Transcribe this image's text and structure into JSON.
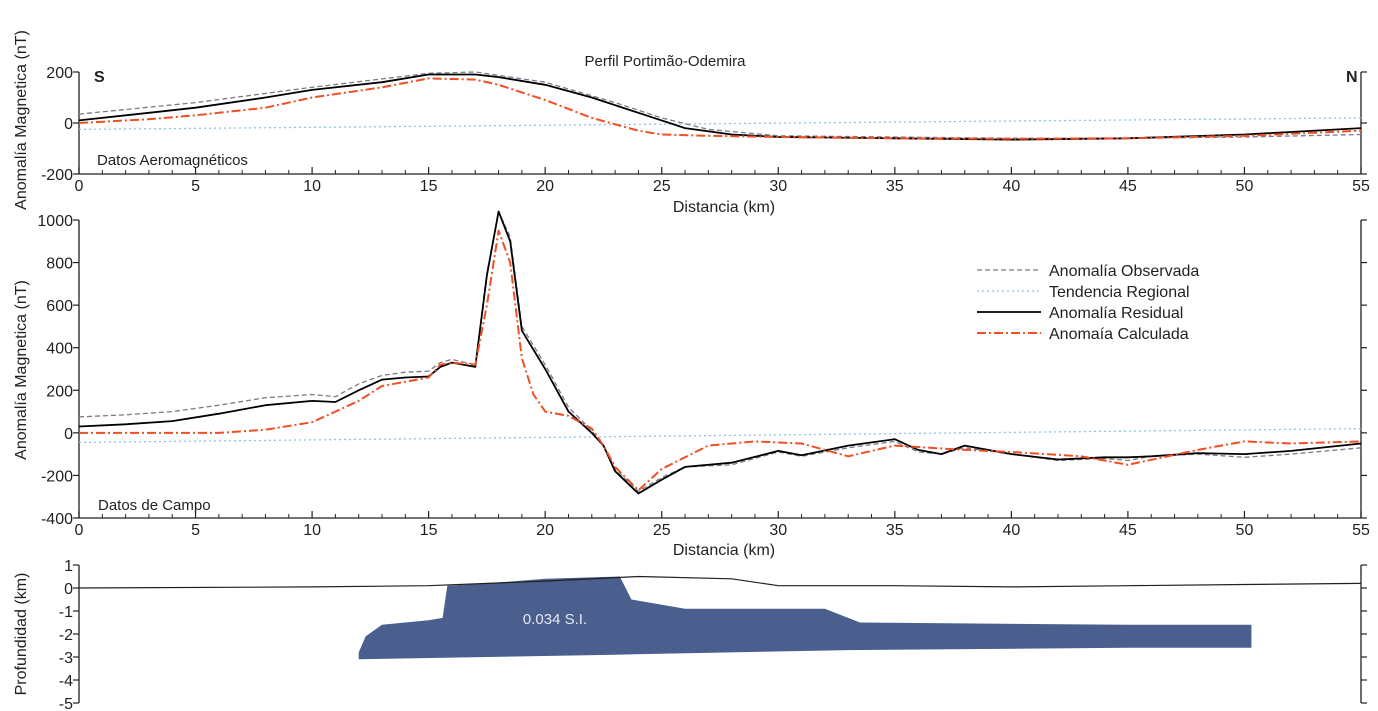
{
  "figure": {
    "title": "Perfil Portimão-Odemira",
    "left_label": "S",
    "right_label": "N"
  },
  "colors": {
    "observed": "#7a7a8c",
    "regional": "#8cc4e6",
    "residual": "#000000",
    "calculated": "#f04e23",
    "body": "#4a5f8e",
    "axis": "#231f20"
  },
  "chart_data": [
    {
      "type": "line",
      "panel": "aeromagnetic",
      "annotation": "Datos Aeromagnéticos",
      "xlabel": "Distancia (km)",
      "ylabel": "Anomalía Magnetica (nT)",
      "xlim": [
        0,
        55
      ],
      "ylim": [
        -200,
        200
      ],
      "xticks": [
        0,
        5,
        10,
        15,
        20,
        25,
        30,
        35,
        40,
        45,
        50,
        55
      ],
      "yticks": [
        -200,
        0,
        200
      ],
      "grid": false,
      "series": [
        {
          "key": "observed",
          "style": "dashed",
          "x": [
            0,
            5,
            10,
            15,
            17,
            20,
            23,
            25,
            27,
            30,
            35,
            40,
            45,
            50,
            55
          ],
          "y": [
            35,
            80,
            140,
            195,
            200,
            160,
            80,
            20,
            -25,
            -50,
            -55,
            -60,
            -60,
            -55,
            -45
          ]
        },
        {
          "key": "regional",
          "style": "dotted",
          "x": [
            0,
            55
          ],
          "y": [
            -25,
            20
          ]
        },
        {
          "key": "residual",
          "style": "solid",
          "x": [
            0,
            3,
            5,
            8,
            10,
            13,
            15,
            17,
            18,
            20,
            22,
            24,
            26,
            28,
            30,
            35,
            40,
            45,
            50,
            55
          ],
          "y": [
            10,
            40,
            60,
            100,
            130,
            160,
            190,
            190,
            180,
            150,
            100,
            40,
            -20,
            -45,
            -55,
            -60,
            -65,
            -60,
            -45,
            -20
          ]
        },
        {
          "key": "calculated",
          "style": "dashdot",
          "x": [
            0,
            3,
            5,
            8,
            10,
            13,
            15,
            17,
            18,
            20,
            22,
            24,
            25,
            27,
            30,
            35,
            40,
            45,
            50,
            55
          ],
          "y": [
            0,
            15,
            30,
            60,
            100,
            140,
            175,
            170,
            150,
            90,
            20,
            -30,
            -45,
            -50,
            -55,
            -60,
            -62,
            -60,
            -50,
            -30
          ]
        }
      ]
    },
    {
      "type": "line",
      "panel": "field",
      "annotation": "Datos de Campo",
      "xlabel": "Distancia (km)",
      "ylabel": "Anomalía Magnetica (nT)",
      "xlim": [
        0,
        55
      ],
      "ylim": [
        -400,
        1000
      ],
      "xticks": [
        0,
        5,
        10,
        15,
        20,
        25,
        30,
        35,
        40,
        45,
        50,
        55
      ],
      "yticks": [
        -400,
        -200,
        0,
        200,
        400,
        600,
        800,
        1000
      ],
      "grid": false,
      "legend_position": "right",
      "legend": [
        {
          "key": "observed",
          "label": "Anomalía Observada"
        },
        {
          "key": "regional",
          "label": "Tendencia Regional"
        },
        {
          "key": "residual",
          "label": "Anomalía Residual"
        },
        {
          "key": "calculated",
          "label": "Anomaía Calculada"
        }
      ],
      "series": [
        {
          "key": "observed",
          "style": "dashed",
          "x": [
            0,
            2,
            4,
            6,
            8,
            10,
            11,
            12,
            13,
            14,
            15,
            15.5,
            16,
            17,
            17.5,
            18,
            18.5,
            19,
            20,
            21,
            22,
            22.5,
            23,
            24,
            25,
            26,
            28,
            30,
            31,
            33,
            35,
            36,
            37,
            38,
            40,
            42,
            44,
            45,
            46,
            48,
            50,
            52,
            55
          ],
          "y": [
            75,
            85,
            100,
            130,
            165,
            180,
            170,
            230,
            270,
            285,
            290,
            330,
            345,
            320,
            750,
            1040,
            920,
            500,
            320,
            120,
            10,
            -60,
            -170,
            -275,
            -210,
            -160,
            -150,
            -90,
            -110,
            -70,
            -40,
            -90,
            -100,
            -70,
            -100,
            -130,
            -120,
            -130,
            -110,
            -100,
            -115,
            -100,
            -70
          ]
        },
        {
          "key": "regional",
          "style": "dotted",
          "x": [
            0,
            55
          ],
          "y": [
            -45,
            20
          ]
        },
        {
          "key": "residual",
          "style": "solid",
          "x": [
            0,
            2,
            4,
            6,
            8,
            10,
            11,
            12,
            13,
            14,
            15,
            15.5,
            16,
            17,
            17.5,
            18,
            18.5,
            19,
            20,
            21,
            22,
            22.5,
            23,
            24,
            25,
            26,
            28,
            30,
            31,
            33,
            35,
            36,
            37,
            38,
            40,
            42,
            44,
            45,
            46,
            48,
            50,
            52,
            55
          ],
          "y": [
            30,
            40,
            55,
            90,
            130,
            150,
            145,
            200,
            250,
            260,
            265,
            310,
            330,
            310,
            740,
            1040,
            900,
            480,
            300,
            100,
            0,
            -60,
            -180,
            -285,
            -220,
            -160,
            -140,
            -85,
            -105,
            -60,
            -30,
            -80,
            -100,
            -60,
            -100,
            -125,
            -115,
            -115,
            -110,
            -95,
            -100,
            -85,
            -50
          ]
        },
        {
          "key": "calculated",
          "style": "dashdot",
          "x": [
            0,
            3,
            6,
            8,
            10,
            11,
            12,
            13,
            14,
            15,
            15.5,
            16,
            17,
            17.5,
            18,
            18.5,
            19,
            19.5,
            20,
            21,
            22,
            22.5,
            23,
            24,
            25,
            27,
            29,
            31,
            33,
            35,
            38,
            40,
            43,
            45,
            48,
            50,
            52,
            55
          ],
          "y": [
            0,
            0,
            0,
            15,
            50,
            100,
            150,
            220,
            240,
            260,
            320,
            330,
            320,
            600,
            950,
            800,
            350,
            180,
            100,
            80,
            20,
            -60,
            -160,
            -270,
            -170,
            -60,
            -40,
            -50,
            -110,
            -60,
            -80,
            -90,
            -110,
            -150,
            -80,
            -40,
            -50,
            -40
          ]
        }
      ]
    }
  ],
  "model_panel": {
    "ylabel": "Profundidad (km)",
    "xlim": [
      0,
      55
    ],
    "ylim": [
      -5,
      1
    ],
    "yticks": [
      1,
      0,
      -1,
      -2,
      -3,
      -4,
      -5
    ],
    "body_label": "0.034 S.I.",
    "topography": {
      "x": [
        0,
        10,
        15,
        20,
        24,
        28,
        30,
        35,
        40,
        45,
        50,
        55
      ],
      "y": [
        0,
        0.05,
        0.1,
        0.3,
        0.5,
        0.4,
        0.1,
        0.1,
        0.05,
        0.1,
        0.15,
        0.2
      ]
    },
    "body_outline": {
      "x": [
        12,
        12.3,
        13,
        15,
        15.6,
        15.8,
        17.5,
        20,
        23.2,
        23.7,
        26,
        32,
        33.5,
        45,
        50.3,
        50.3,
        45,
        33,
        23,
        12
      ],
      "y": [
        -2.8,
        -2.1,
        -1.6,
        -1.4,
        -1.3,
        0.1,
        0.2,
        0.4,
        0.5,
        -0.5,
        -0.9,
        -0.9,
        -1.5,
        -1.6,
        -1.6,
        -2.6,
        -2.6,
        -2.7,
        -2.9,
        -3.1
      ]
    }
  }
}
